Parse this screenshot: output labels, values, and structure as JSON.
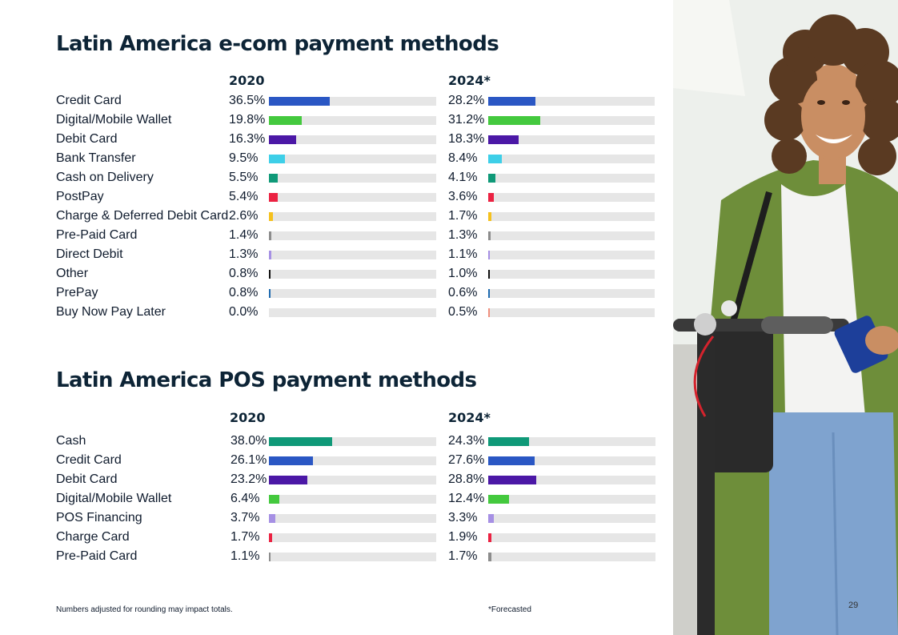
{
  "chart_data": [
    {
      "type": "bar",
      "title": "Latin America e-com payment methods",
      "columns": [
        "2020",
        "2024*"
      ],
      "categories": [
        "Credit Card",
        "Digital/Mobile Wallet",
        "Debit Card",
        "Bank Transfer",
        "Cash on Delivery",
        "PostPay",
        "Charge & Deferred Debit Card",
        "Pre-Paid Card",
        "Direct Debit",
        "Other",
        "PrePay",
        "Buy Now Pay Later"
      ],
      "colors": [
        "#2a57c4",
        "#44c93e",
        "#4b18a6",
        "#3ecfe8",
        "#0f9978",
        "#eb2242",
        "#f5c11e",
        "#8c8c8c",
        "#a690e4",
        "#111111",
        "#1e6bb0",
        "#f0917f"
      ],
      "series": [
        {
          "name": "2020",
          "values": [
            36.5,
            19.8,
            16.3,
            9.5,
            5.5,
            5.4,
            2.6,
            1.4,
            1.3,
            0.8,
            0.8,
            0.0
          ]
        },
        {
          "name": "2024*",
          "values": [
            28.2,
            31.2,
            18.3,
            8.4,
            4.1,
            3.6,
            1.7,
            1.3,
            1.1,
            1.0,
            0.6,
            0.5
          ]
        }
      ],
      "value_labels": {
        "2020": [
          "36.5%",
          "19.8%",
          "16.3%",
          "9.5%",
          "5.5%",
          "5.4%",
          "2.6%",
          "1.4%",
          "1.3%",
          "0.8%",
          "0.8%",
          "0.0%"
        ],
        "2024*": [
          "28.2%",
          "31.2%",
          "18.3%",
          "8.4%",
          "4.1%",
          "3.6%",
          "1.7%",
          "1.3%",
          "1.1%",
          "1.0%",
          "0.6%",
          "0.5%"
        ]
      },
      "xlim": [
        0,
        100
      ]
    },
    {
      "type": "bar",
      "title": "Latin America POS payment methods",
      "columns": [
        "2020",
        "2024*"
      ],
      "categories": [
        "Cash",
        "Credit Card",
        "Debit Card",
        "Digital/Mobile Wallet",
        "POS Financing",
        "Charge Card",
        "Pre-Paid Card"
      ],
      "colors": [
        "#0f9978",
        "#2a57c4",
        "#4b18a6",
        "#44c93e",
        "#a690e4",
        "#eb2242",
        "#8c8c8c"
      ],
      "series": [
        {
          "name": "2020",
          "values": [
            38.0,
            26.1,
            23.2,
            6.4,
            3.7,
            1.7,
            1.1
          ]
        },
        {
          "name": "2024*",
          "values": [
            24.3,
            27.6,
            28.8,
            12.4,
            3.3,
            1.9,
            1.7
          ]
        }
      ],
      "value_labels": {
        "2020": [
          "38.0%",
          "26.1%",
          "23.2%",
          "6.4%",
          "3.7%",
          "1.7%",
          "1.1%"
        ],
        "2024*": [
          "24.3%",
          "27.6%",
          "28.8%",
          "12.4%",
          "3.3%",
          "1.9%",
          "1.7%"
        ]
      },
      "xlim": [
        0,
        100
      ]
    }
  ],
  "footnotes": {
    "rounding": "Numbers adjusted for rounding may impact totals.",
    "forecast": "*Forecasted"
  },
  "page_number": "29",
  "photo": {
    "icon": "woman-with-scooter-photo"
  }
}
